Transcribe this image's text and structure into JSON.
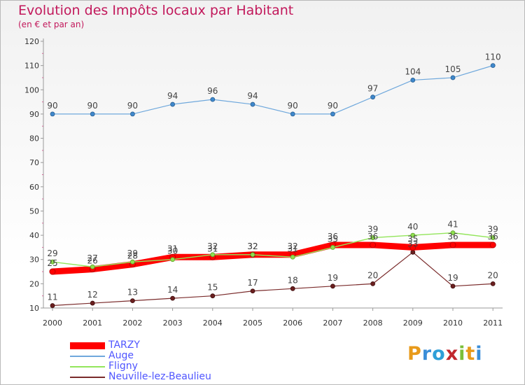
{
  "chart_data": {
    "type": "line",
    "title": "Evolution des Impôts locaux par Habitant",
    "subtitle": "(en € et par an)",
    "xlabel": "",
    "ylabel": "",
    "ylim": [
      10,
      120
    ],
    "yticks": [
      10,
      20,
      30,
      40,
      50,
      60,
      70,
      80,
      90,
      100,
      110,
      120
    ],
    "grid": false,
    "legend_position": "bottom-left",
    "x": [
      "2000",
      "2001",
      "2002",
      "2003",
      "2004",
      "2005",
      "2006",
      "2007",
      "2008",
      "2009",
      "2010",
      "2011"
    ],
    "series": [
      {
        "name": "TARZY",
        "color": "#ff0000",
        "values": [
          25,
          26,
          28,
          31,
          31,
          32,
          32,
          36,
          36,
          35,
          36,
          36
        ],
        "labels": [
          "25",
          "26",
          "28",
          "31",
          "31",
          "32",
          "32",
          "36",
          "36",
          "35",
          "36",
          "36"
        ]
      },
      {
        "name": "Auge",
        "color": "#6fa8dc",
        "values": [
          90,
          90,
          90,
          94,
          96,
          94,
          90,
          90,
          97,
          104,
          105,
          110
        ],
        "labels": [
          "90",
          "90",
          "90",
          "94",
          "96",
          "94",
          "90",
          "90",
          "97",
          "104",
          "105",
          "110"
        ]
      },
      {
        "name": "Fligny",
        "color": "#93e55b",
        "values": [
          29,
          27,
          29,
          30,
          32,
          32,
          31,
          35,
          39,
          40,
          41,
          39
        ],
        "labels": [
          "29",
          "27",
          "29",
          "30",
          "32",
          "32",
          "31",
          "35",
          "39",
          "40",
          "41",
          "39"
        ]
      },
      {
        "name": "Neuville-lez-Beaulieu",
        "color": "#7a2b2b",
        "values": [
          11,
          12,
          13,
          14,
          15,
          17,
          18,
          19,
          20,
          33,
          19,
          20
        ],
        "labels": [
          "11",
          "12",
          "13",
          "14",
          "15",
          "17",
          "18",
          "19",
          "20",
          "33",
          "19",
          "20"
        ]
      }
    ]
  },
  "logo": {
    "letters": [
      "P",
      "r",
      "o",
      "x",
      "i",
      "t",
      "i"
    ],
    "colors": [
      "#e89a1a",
      "#3b8ed8",
      "#2e9fd8",
      "#c1272d",
      "#7cbf3a",
      "#e89a1a",
      "#3b8ed8"
    ]
  }
}
